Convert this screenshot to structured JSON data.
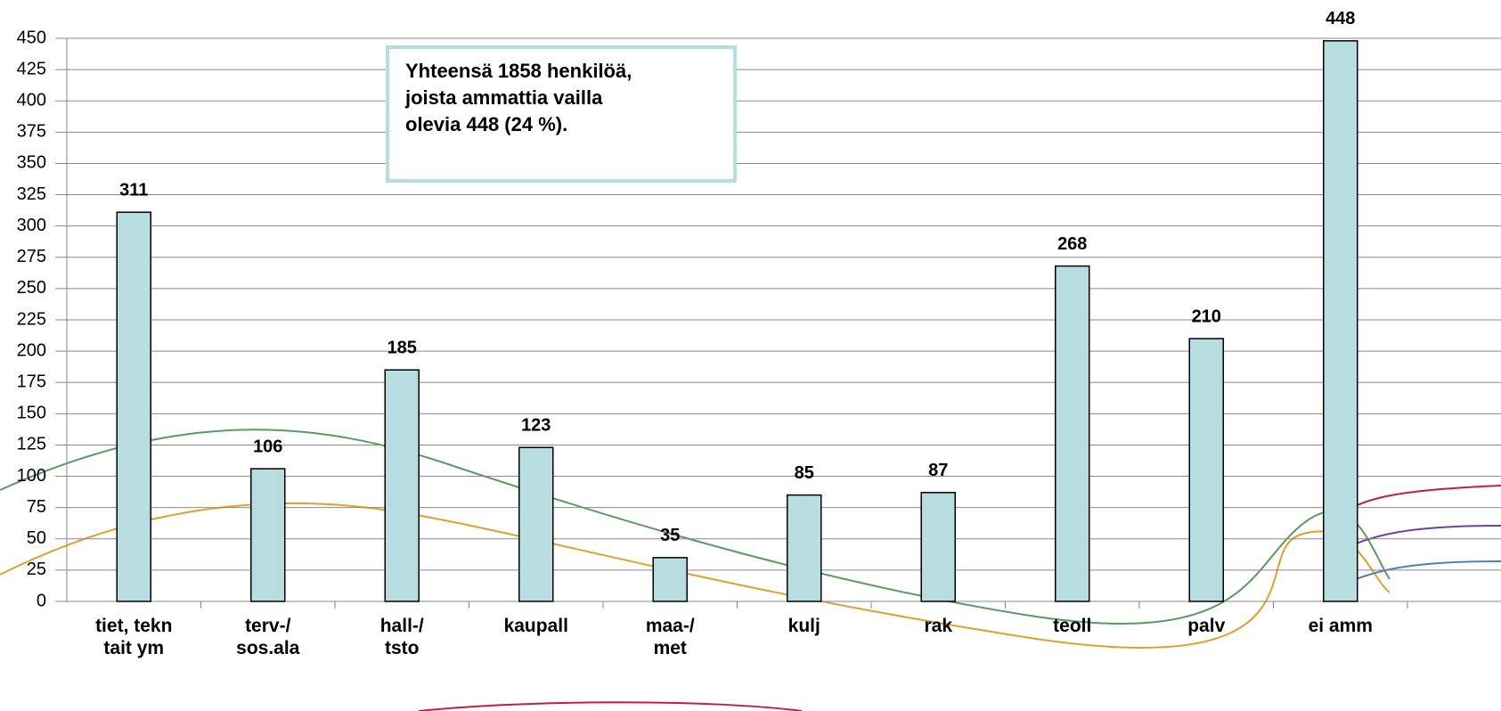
{
  "chart_data": {
    "type": "bar",
    "categories": [
      "tiet, tekn\ntait ym",
      "terv-/\nsos.ala",
      "hall-/\ntsto",
      "kaupall",
      "maa-/\nmet",
      "kulj",
      "rak",
      "teoll",
      "palv",
      "ei amm"
    ],
    "values": [
      311,
      106,
      185,
      123,
      35,
      85,
      87,
      268,
      210,
      448
    ],
    "color": "#b7dde0",
    "ylim": [
      0,
      450
    ],
    "yticks": [
      0,
      25,
      50,
      75,
      100,
      125,
      150,
      175,
      200,
      225,
      250,
      275,
      300,
      325,
      350,
      375,
      400,
      425,
      450
    ],
    "grid": true,
    "annotation": "Yhteensä 1858 henkilöä,\njoista ammattia vailla\nolevia 448 (24 %)."
  }
}
